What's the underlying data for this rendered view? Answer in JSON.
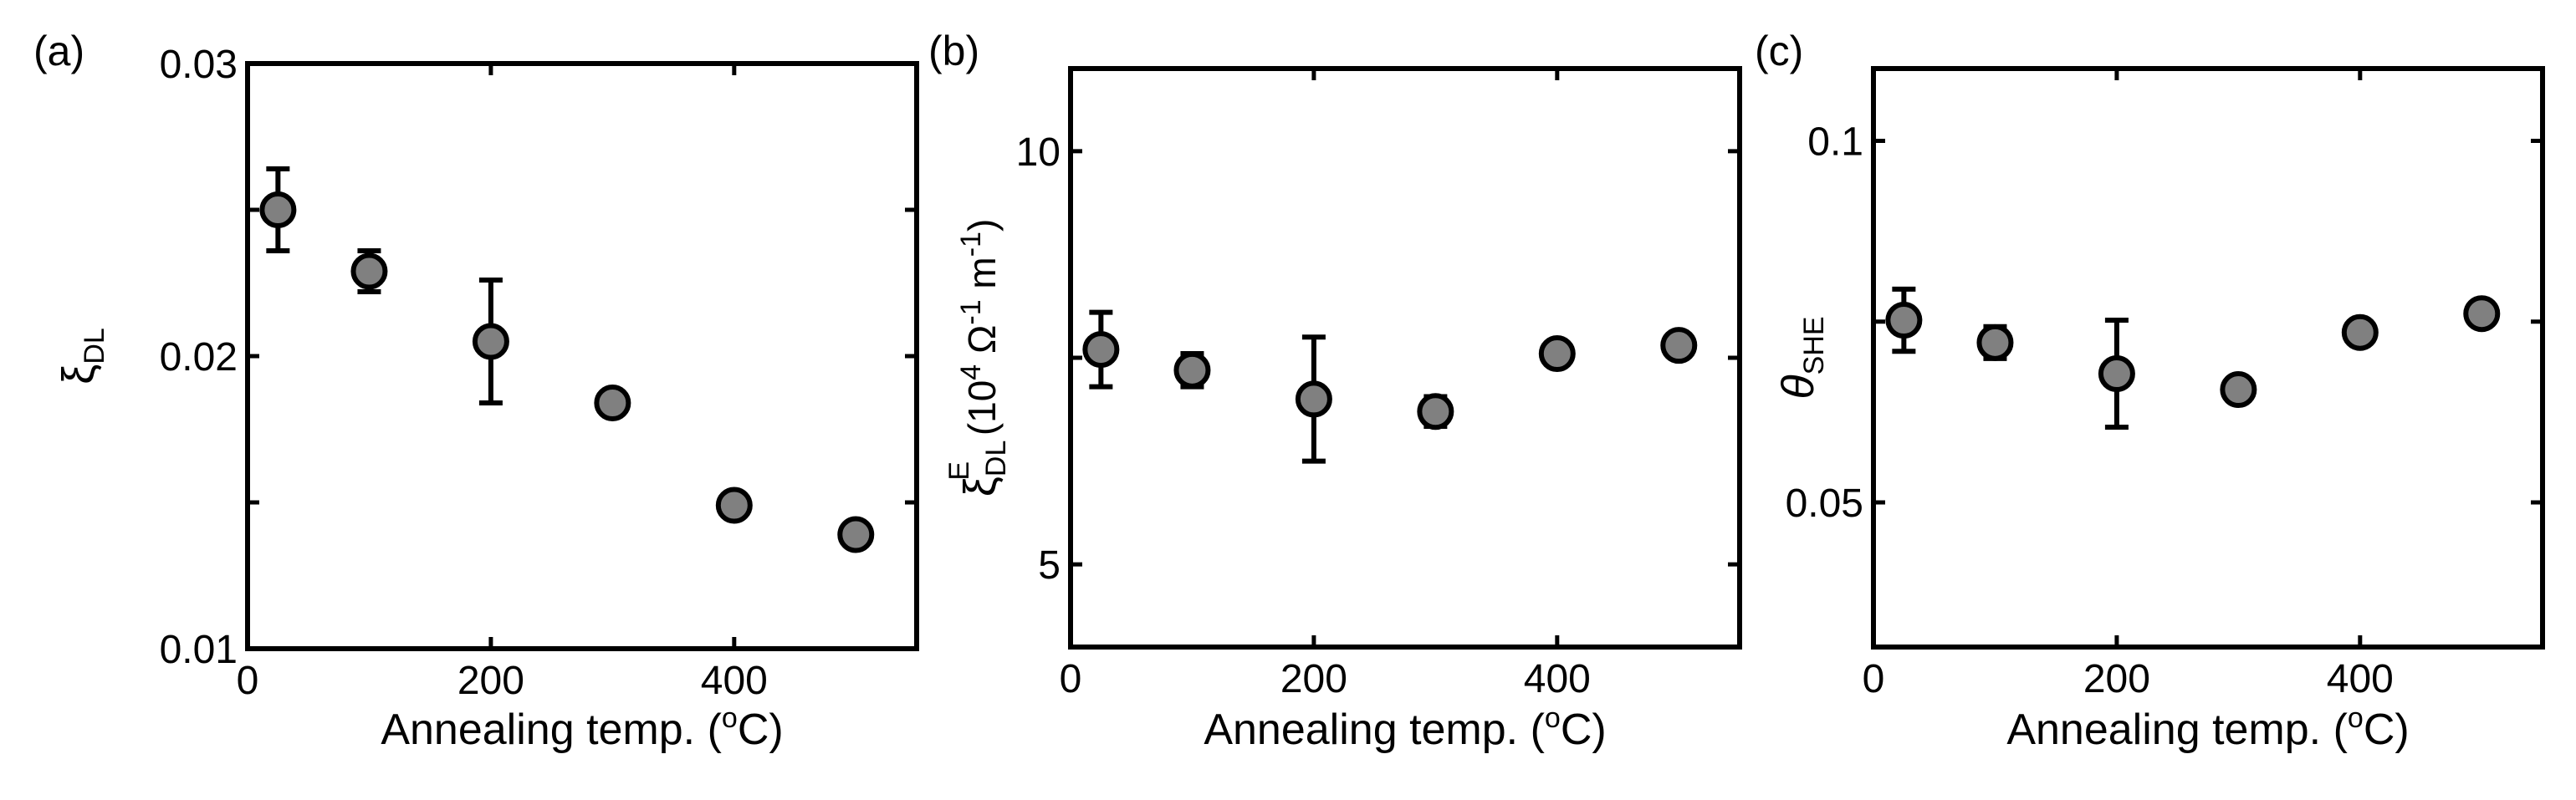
{
  "chart_data": [
    {
      "type": "scatter",
      "panel_label": "(a)",
      "title": "",
      "xlabel": "Annealing temp. (",
      "xlabel_sup": "o",
      "xlabel_tail": "C)",
      "ylabel": {
        "symbol": "ξ",
        "sub": "DL"
      },
      "xlim": [
        0,
        550
      ],
      "ylim": [
        0.01,
        0.03
      ],
      "xticks": [
        0,
        200,
        400
      ],
      "xtick_labels": [
        "0",
        "200",
        "400"
      ],
      "yticks": [
        0.01,
        0.02,
        0.03
      ],
      "ytick_labels": [
        "0.01",
        "0.02",
        "0.03"
      ],
      "minor_yticks": [
        0.015,
        0.025
      ],
      "grid": false,
      "color": "#808080",
      "series": [
        {
          "name": "ξDL",
          "x": [
            25,
            100,
            200,
            300,
            400,
            500
          ],
          "y": [
            0.025,
            0.0229,
            0.0205,
            0.0184,
            0.0149,
            0.0139
          ],
          "err": [
            0.0014,
            0.0007,
            0.0021,
            0.0004,
            0.0003,
            0.0003
          ]
        }
      ]
    },
    {
      "type": "scatter",
      "panel_label": "(b)",
      "title": "",
      "xlabel": "Annealing temp. (",
      "xlabel_sup": "o",
      "xlabel_tail": "C)",
      "ylabel": {
        "symbol": "ξ",
        "sup": "E",
        "sub": "DL",
        "rest_open": " (10",
        "rest_exp1": "4",
        "rest_mid": " Ω",
        "rest_exp2": "-1",
        "rest_unit": " m",
        "rest_exp3": "-1",
        "rest_close": ")"
      },
      "xlim": [
        0,
        550
      ],
      "ylim": [
        4,
        11
      ],
      "xticks": [
        0,
        200,
        400
      ],
      "xtick_labels": [
        "0",
        "200",
        "400"
      ],
      "yticks": [
        5,
        10
      ],
      "ytick_labels": [
        "5",
        "10"
      ],
      "minor_yticks": [
        7.5
      ],
      "grid": false,
      "color": "#808080",
      "series": [
        {
          "name": "ξEDL",
          "x": [
            25,
            100,
            200,
            300,
            400,
            500
          ],
          "y": [
            7.6,
            7.35,
            7.0,
            6.85,
            7.55,
            7.65
          ],
          "err": [
            0.45,
            0.2,
            0.75,
            0.18,
            0.1,
            0.1
          ]
        }
      ]
    },
    {
      "type": "scatter",
      "panel_label": "(c)",
      "title": "",
      "xlabel": "Annealing temp. (",
      "xlabel_sup": "o",
      "xlabel_tail": "C)",
      "ylabel": {
        "symbol": "θ",
        "sub": "SHE"
      },
      "xlim": [
        0,
        550
      ],
      "ylim": [
        0.03,
        0.11
      ],
      "xticks": [
        0,
        200,
        400
      ],
      "xtick_labels": [
        "0",
        "200",
        "400"
      ],
      "yticks": [
        0.05,
        0.1
      ],
      "ytick_labels": [
        "0.05",
        "0.1"
      ],
      "minor_yticks": [
        0.075
      ],
      "grid": false,
      "color": "#808080",
      "series": [
        {
          "name": "θSHE",
          "x": [
            25,
            100,
            200,
            300,
            400,
            500
          ],
          "y": [
            0.0752,
            0.0721,
            0.0678,
            0.0656,
            0.0735,
            0.0761
          ],
          "err": [
            0.0043,
            0.0022,
            0.0074,
            0.0013,
            0.0011,
            0.0011
          ]
        }
      ]
    }
  ]
}
